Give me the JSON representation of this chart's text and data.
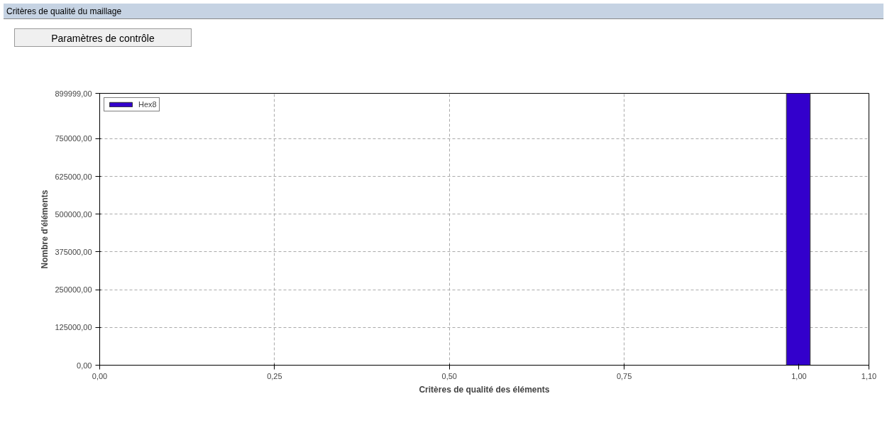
{
  "chart_data": {
    "type": "histogram",
    "title": "Critères de qualité du maillage",
    "xlabel": "Critères de qualité des éléments",
    "ylabel": "Nombre d'éléments",
    "annotations": [
      "Paramètres de contrôle"
    ],
    "bins": [
      0.982,
      1.016
    ],
    "series": [
      {
        "name": "Hex8",
        "color": "#3300cc",
        "values": [
          899999
        ]
      }
    ],
    "xlim": [
      0,
      1.1
    ],
    "xticks": [
      {
        "value": 0,
        "label": "0,00"
      },
      {
        "value": 0.25,
        "label": "0,25"
      },
      {
        "value": 0.5,
        "label": "0,50"
      },
      {
        "value": 0.75,
        "label": "0,75"
      },
      {
        "value": 1.0,
        "label": "1,00"
      },
      {
        "value": 1.1,
        "label": "1,10"
      }
    ],
    "ylim": [
      0,
      899999
    ],
    "yticks": [
      {
        "value": 0,
        "label": "0,00"
      },
      {
        "value": 125000,
        "label": "125000,00"
      },
      {
        "value": 250000,
        "label": "250000,00"
      },
      {
        "value": 375000,
        "label": "375000,00"
      },
      {
        "value": 500000,
        "label": "500000,00"
      },
      {
        "value": 625000,
        "label": "625000,00"
      },
      {
        "value": 750000,
        "label": "750000,00"
      },
      {
        "value": 899999,
        "label": "899999,00"
      }
    ],
    "grid": true,
    "legend": "top left"
  }
}
